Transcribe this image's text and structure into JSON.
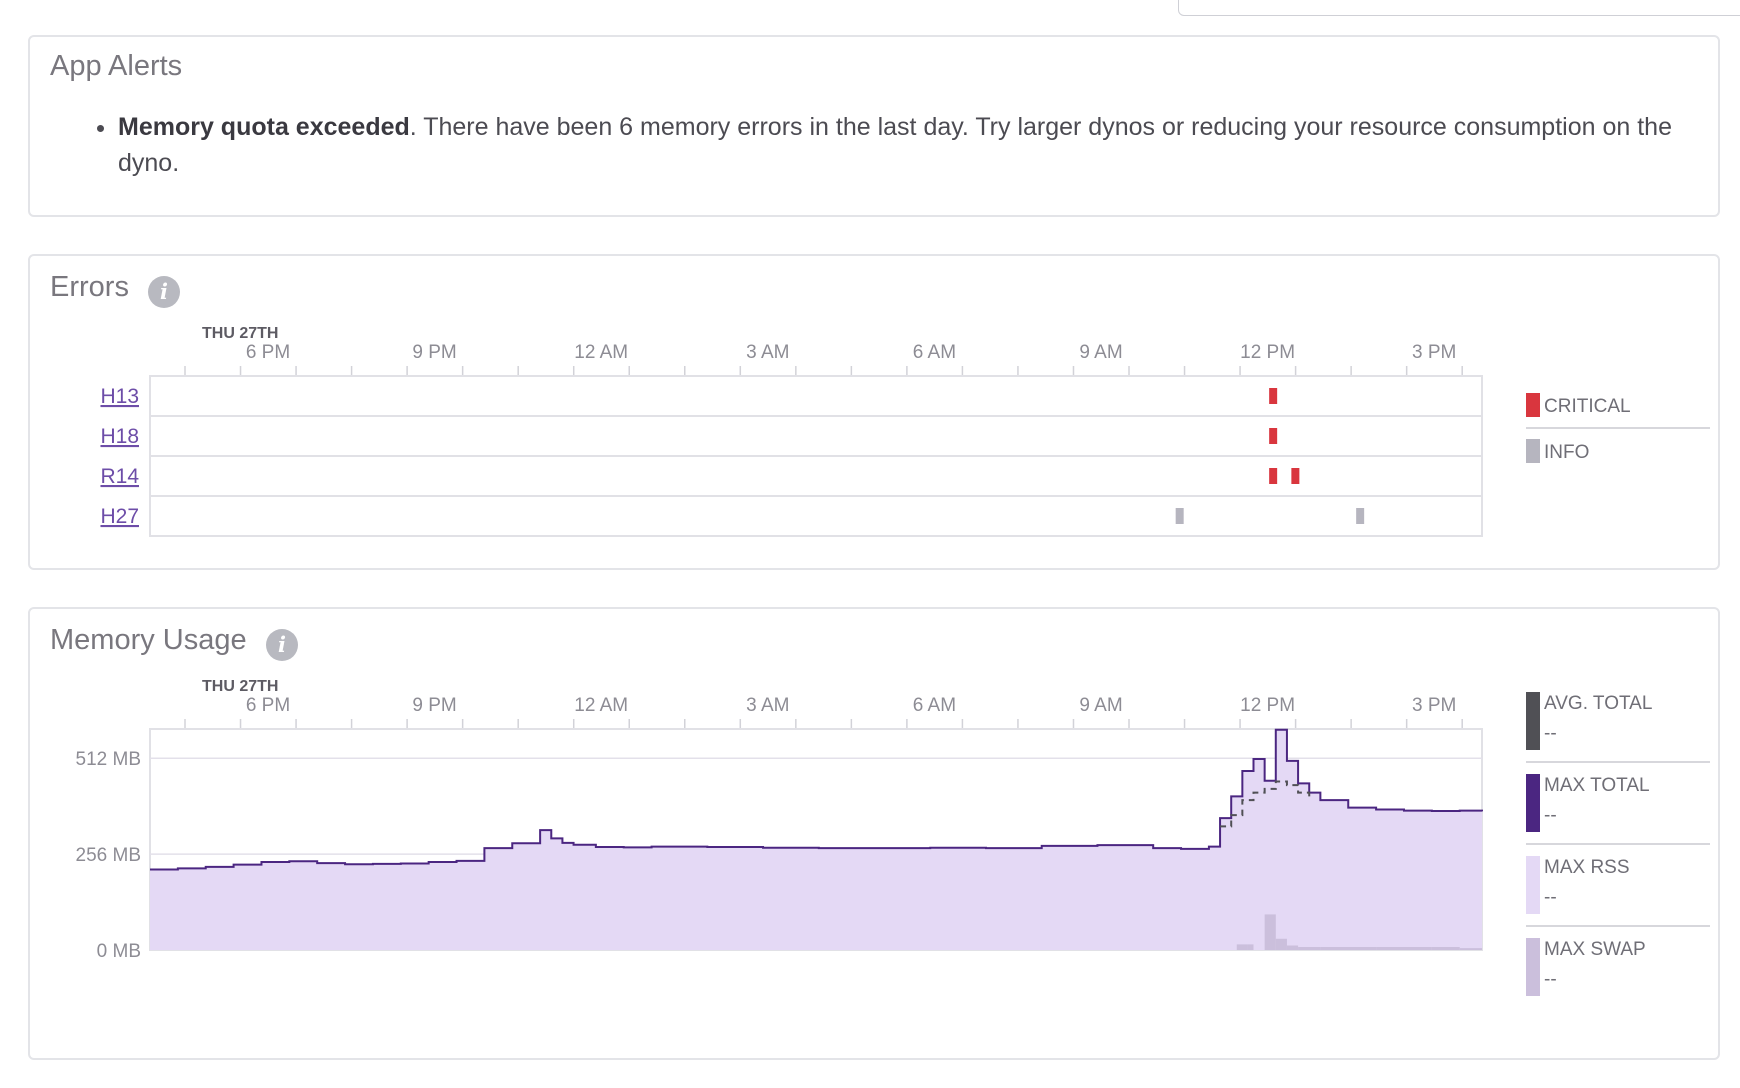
{
  "alerts": {
    "title": "App Alerts",
    "items": [
      {
        "strong": "Memory quota exceeded",
        "text": ". There have been 6 memory errors in the last day. Try larger dynos or reducing your resource consumption on the dyno."
      }
    ]
  },
  "errors": {
    "title": "Errors",
    "info_icon": "info-icon",
    "date_label": "THU 27TH",
    "time_ticks": [
      "6 PM",
      "9 PM",
      "12 AM",
      "3 AM",
      "6 AM",
      "9 AM",
      "12 PM",
      "3 PM"
    ],
    "rows": [
      {
        "code": "H13",
        "events": [
          {
            "time": "12:06 PM",
            "level": "critical"
          }
        ]
      },
      {
        "code": "H18",
        "events": [
          {
            "time": "12:06 PM",
            "level": "critical"
          }
        ]
      },
      {
        "code": "R14",
        "events": [
          {
            "time": "12:06 PM",
            "level": "critical"
          },
          {
            "time": "12:30 PM",
            "level": "critical"
          }
        ]
      },
      {
        "code": "H27",
        "events": [
          {
            "time": "10:25 AM",
            "level": "info"
          },
          {
            "time": "1:40 PM",
            "level": "info"
          }
        ]
      }
    ],
    "legend": [
      {
        "label": "CRITICAL",
        "color": "#d9363e"
      },
      {
        "label": "INFO",
        "color": "#b6b5bf"
      }
    ]
  },
  "memory": {
    "title": "Memory Usage",
    "info_icon": "info-icon",
    "date_label": "THU 27TH",
    "time_ticks": [
      "6 PM",
      "9 PM",
      "12 AM",
      "3 AM",
      "6 AM",
      "9 AM",
      "12 PM",
      "3 PM"
    ],
    "y_ticks": [
      "512 MB",
      "256 MB",
      "0 MB"
    ],
    "legend": [
      {
        "label": "AVG. TOTAL",
        "value": "--",
        "color": "#505055"
      },
      {
        "label": "MAX TOTAL",
        "value": "--",
        "color": "#4b2681"
      },
      {
        "label": "MAX RSS",
        "value": "--",
        "color": "#e4d9f5"
      },
      {
        "label": "MAX SWAP",
        "value": "--",
        "color": "#cbbfdc"
      }
    ]
  },
  "chart_data": {
    "type": "area",
    "title": "Memory Usage",
    "ylabel": "",
    "xlabel": "",
    "x_unit": "hours after 4 PM, Thu 27th",
    "ylim": [
      0,
      590
    ],
    "y_ticks": [
      0,
      256,
      512
    ],
    "series": [
      {
        "name": "MAX TOTAL",
        "x": [
          0,
          0.5,
          1,
          1.5,
          2,
          2.5,
          3,
          3.5,
          4,
          4.5,
          5,
          5.5,
          6,
          6.5,
          7,
          7.2,
          7.4,
          7.6,
          8,
          8.5,
          9,
          9.5,
          10,
          11,
          12,
          13,
          14,
          15,
          16,
          17,
          17.5,
          18,
          18.5,
          19,
          19.2,
          19.4,
          19.6,
          19.8,
          20,
          20.2,
          20.4,
          20.6,
          20.8,
          21,
          21.5,
          22,
          22.5,
          23,
          23.5,
          23.9
        ],
        "values": [
          215,
          218,
          222,
          228,
          235,
          237,
          232,
          229,
          230,
          231,
          235,
          238,
          272,
          285,
          320,
          298,
          286,
          281,
          275,
          274,
          276,
          276,
          275,
          273,
          272,
          272,
          273,
          272,
          278,
          280,
          280,
          272,
          270,
          276,
          352,
          410,
          478,
          510,
          452,
          588,
          505,
          445,
          420,
          400,
          380,
          375,
          372,
          371,
          372,
          370
        ]
      },
      {
        "name": "AVG. TOTAL",
        "x": [
          19.2,
          19.4,
          19.6,
          19.8,
          20,
          20.2,
          20.4,
          20.6,
          20.8
        ],
        "values": [
          330,
          360,
          400,
          420,
          430,
          450,
          440,
          420,
          400
        ]
      },
      {
        "name": "MAX SWAP",
        "x": [
          19.5,
          19.7,
          19.8,
          20,
          20.2,
          20.4,
          20.6,
          21,
          22,
          23,
          23.5,
          23.9
        ],
        "values": [
          15,
          15,
          0,
          95,
          30,
          12,
          8,
          8,
          8,
          8,
          5,
          0
        ]
      }
    ]
  }
}
